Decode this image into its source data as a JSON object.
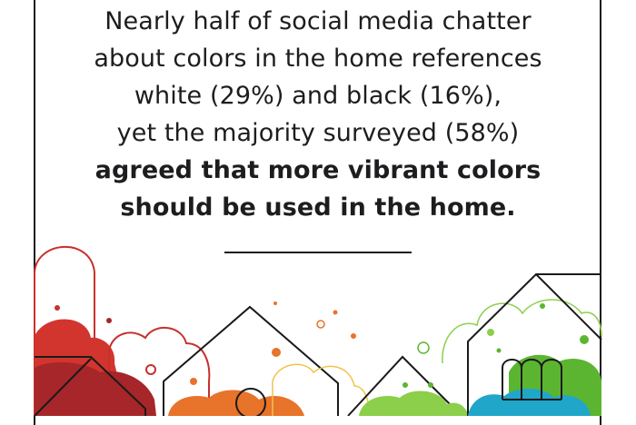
{
  "statement": {
    "lines": [
      "Nearly half of social media chatter",
      "about colors in the home references",
      "white (29%) and black (16%),",
      "yet the majority surveyed (58%)"
    ],
    "emphasis_lines": [
      "agreed that more vibrant colors",
      "should be used in the home."
    ]
  },
  "colors": {
    "frame": "#1a1a1a",
    "text": "#1d1d1f",
    "red": "#c9302c",
    "dark_red": "#a6262a",
    "orange": "#e8732a",
    "yellow_outline": "#f2c24a",
    "green": "#5cb530",
    "light_green": "#8ccf4a",
    "blue": "#1fa6c9"
  },
  "illustration": {
    "icons": [
      "house-outline-icon",
      "paint-splash-icon",
      "arch-window-icon",
      "bubble-dot-icon"
    ]
  }
}
